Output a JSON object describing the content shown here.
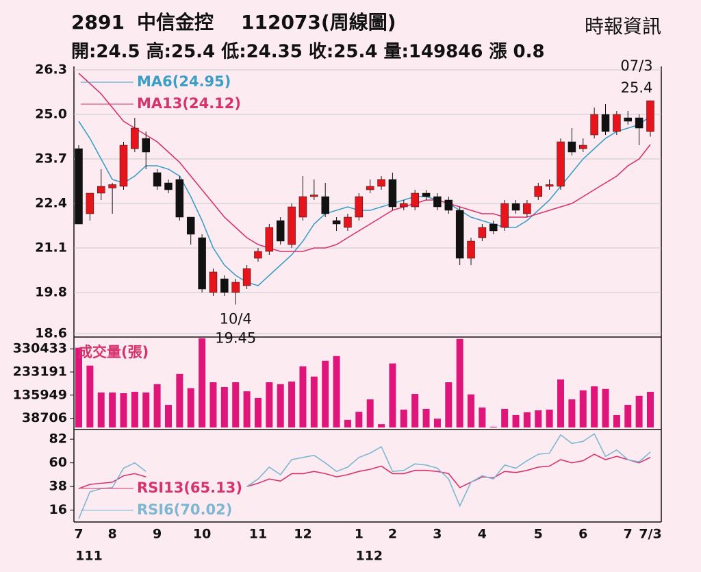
{
  "header": {
    "code": "2891",
    "name": "中信金控",
    "period": "112073(周線圖)",
    "source": "時報資訊",
    "summary": "開:24.5 高:25.4 低:24.35 收:25.4 量:149846 漲 0.8"
  },
  "chart_data": [
    {
      "type": "candlestick",
      "categories": [
        "7",
        null,
        null,
        "8",
        null,
        null,
        null,
        "9",
        null,
        null,
        null,
        "10",
        null,
        null,
        null,
        null,
        "11",
        null,
        null,
        null,
        "12",
        null,
        null,
        null,
        null,
        "1",
        null,
        null,
        "2",
        null,
        null,
        null,
        "3",
        null,
        null,
        null,
        "4",
        null,
        null,
        null,
        null,
        "5",
        null,
        null,
        null,
        "6",
        null,
        null,
        null,
        "7",
        null,
        "7/3"
      ],
      "year_labels": [
        "111",
        null,
        null,
        null,
        null,
        null,
        null,
        null,
        null,
        null,
        null,
        null,
        null,
        null,
        null,
        null,
        null,
        null,
        null,
        null,
        null,
        null,
        null,
        null,
        null,
        "112",
        null,
        null,
        null,
        null,
        null,
        null,
        null,
        null,
        null,
        null,
        null,
        null,
        null,
        null,
        null,
        null,
        null,
        null,
        null,
        null,
        null,
        null,
        null,
        null,
        null,
        null
      ],
      "open": [
        24.0,
        22.1,
        22.7,
        22.85,
        22.9,
        24.0,
        24.3,
        23.3,
        23.0,
        23.1,
        22.0,
        21.4,
        19.8,
        20.2,
        19.8,
        20.0,
        20.8,
        21.0,
        21.9,
        21.2,
        22.0,
        22.6,
        22.6,
        21.9,
        21.7,
        22.0,
        22.8,
        22.9,
        23.1,
        22.3,
        22.3,
        22.7,
        22.6,
        22.5,
        22.2,
        20.8,
        21.4,
        21.8,
        21.7,
        22.4,
        22.1,
        22.6,
        22.9,
        22.9,
        24.2,
        24.0,
        24.4,
        25.0,
        24.5,
        24.9,
        24.9,
        24.5
      ],
      "high": [
        24.1,
        22.7,
        23.4,
        23.0,
        24.2,
        24.9,
        24.5,
        23.4,
        23.1,
        23.2,
        22.0,
        21.5,
        20.5,
        20.3,
        20.2,
        20.6,
        21.1,
        21.8,
        22.0,
        22.4,
        23.2,
        23.1,
        23.0,
        22.0,
        22.1,
        22.7,
        23.1,
        23.2,
        23.3,
        22.5,
        22.8,
        22.8,
        22.7,
        22.6,
        22.3,
        21.4,
        21.8,
        21.9,
        22.5,
        22.5,
        22.5,
        23.0,
        23.1,
        24.3,
        24.6,
        24.3,
        25.2,
        25.3,
        25.1,
        25.1,
        25.0,
        25.4
      ],
      "low": [
        21.8,
        21.9,
        22.5,
        22.1,
        22.8,
        23.9,
        23.4,
        22.8,
        22.7,
        21.9,
        21.2,
        19.8,
        19.7,
        19.7,
        19.45,
        19.9,
        20.7,
        20.9,
        21.2,
        21.1,
        21.9,
        22.5,
        22.0,
        21.6,
        21.6,
        21.9,
        22.7,
        22.8,
        22.2,
        22.2,
        22.2,
        22.5,
        22.2,
        22.1,
        20.6,
        20.6,
        21.3,
        21.5,
        21.6,
        22.1,
        22.0,
        22.5,
        22.8,
        22.8,
        23.8,
        23.9,
        24.3,
        24.4,
        24.4,
        24.7,
        24.1,
        24.35
      ],
      "close": [
        21.8,
        22.7,
        22.9,
        22.95,
        24.1,
        24.6,
        23.9,
        22.9,
        22.8,
        22.0,
        21.5,
        19.9,
        20.4,
        19.8,
        20.1,
        20.5,
        21.0,
        21.7,
        21.3,
        22.3,
        22.6,
        22.65,
        22.1,
        21.8,
        22.0,
        22.6,
        22.9,
        23.1,
        22.3,
        22.4,
        22.7,
        22.6,
        22.3,
        22.2,
        20.8,
        21.3,
        21.7,
        21.6,
        22.4,
        22.2,
        22.4,
        22.9,
        22.95,
        24.2,
        23.9,
        24.1,
        25.0,
        24.5,
        25.0,
        24.8,
        24.6,
        25.4
      ],
      "up_color": "#e8141c",
      "down_color": "#111111",
      "series": [
        {
          "name": "MA6(24.95)",
          "color": "#3a9fc6",
          "values": [
            24.8,
            24.3,
            23.7,
            23.1,
            23.0,
            23.2,
            23.5,
            23.5,
            23.4,
            23.2,
            22.6,
            21.9,
            21.1,
            20.6,
            20.3,
            20.1,
            20.0,
            20.3,
            20.6,
            20.9,
            21.3,
            21.8,
            22.1,
            22.2,
            22.3,
            22.2,
            22.2,
            22.3,
            22.4,
            22.5,
            22.6,
            22.6,
            22.5,
            22.4,
            22.2,
            22.0,
            21.9,
            21.8,
            21.7,
            21.7,
            21.9,
            22.2,
            22.5,
            22.9,
            23.3,
            23.7,
            24.0,
            24.3,
            24.5,
            24.6,
            24.7,
            24.95
          ]
        },
        {
          "name": "MA13(24.12)",
          "color": "#d6336c",
          "values": [
            26.2,
            25.9,
            25.6,
            25.2,
            24.8,
            24.6,
            24.4,
            24.2,
            23.9,
            23.6,
            23.2,
            22.8,
            22.4,
            22.0,
            21.7,
            21.4,
            21.2,
            21.1,
            21.0,
            21.0,
            21.0,
            21.1,
            21.1,
            21.2,
            21.4,
            21.6,
            21.8,
            22.0,
            22.2,
            22.3,
            22.4,
            22.5,
            22.5,
            22.4,
            22.3,
            22.2,
            22.1,
            22.1,
            22.0,
            22.0,
            22.0,
            22.1,
            22.2,
            22.3,
            22.4,
            22.6,
            22.8,
            23.0,
            23.2,
            23.5,
            23.7,
            24.12
          ]
        }
      ],
      "annotations": [
        {
          "date": "07/3",
          "value": 25.4
        },
        {
          "date": "10/4",
          "value": 19.45
        }
      ],
      "ylim": [
        18.5,
        26.4
      ],
      "yticks": [
        26.3,
        {
          "value": 25,
          "label": "25.0"
        },
        23.7,
        22.4,
        21.1,
        19.8,
        18.6
      ],
      "grid": true
    },
    {
      "type": "bar",
      "title": "成交量(張)",
      "color": "#e0157a",
      "values": [
        335000,
        260000,
        147000,
        147000,
        144000,
        150000,
        147000,
        182000,
        95000,
        225000,
        165000,
        375000,
        190000,
        170000,
        190000,
        152000,
        124000,
        190000,
        182000,
        193000,
        257000,
        214000,
        280000,
        300000,
        32000,
        66000,
        118000,
        14000,
        269000,
        75000,
        141000,
        78000,
        37000,
        190000,
        372000,
        139000,
        84000,
        3000,
        78000,
        52000,
        64000,
        72000,
        75000,
        202000,
        118000,
        156000,
        173000,
        162000,
        52000,
        95000,
        133000,
        149846
      ],
      "ylim": [
        0,
        380000
      ],
      "yticks": [
        330433,
        233191,
        135949,
        38706
      ]
    },
    {
      "type": "line",
      "series": [
        {
          "name": "RSI13(65.13)",
          "color": "#d6336c",
          "values": [
            36,
            40,
            41,
            42,
            48,
            50,
            47,
            null,
            null,
            null,
            null,
            null,
            null,
            null,
            null,
            38,
            41,
            45,
            43,
            50,
            50,
            52,
            50,
            47,
            49,
            52,
            54,
            57,
            50,
            50,
            53,
            53,
            52,
            50,
            37,
            42,
            47,
            46,
            52,
            51,
            53,
            56,
            57,
            63,
            60,
            62,
            68,
            63,
            66,
            63,
            60,
            65.13
          ]
        },
        {
          "name": "RSI6(70.02)",
          "color": "#7db7d2",
          "values": [
            8,
            33,
            36,
            37,
            55,
            60,
            52,
            null,
            null,
            null,
            null,
            null,
            null,
            null,
            null,
            38,
            45,
            56,
            49,
            63,
            65,
            67,
            60,
            52,
            56,
            65,
            69,
            75,
            52,
            53,
            59,
            58,
            55,
            45,
            20,
            42,
            48,
            45,
            58,
            55,
            62,
            68,
            69,
            86,
            78,
            80,
            87,
            66,
            72,
            63,
            61,
            70.02
          ]
        }
      ],
      "ylim": [
        5,
        91
      ],
      "yticks": [
        82,
        60,
        38,
        16
      ]
    }
  ]
}
